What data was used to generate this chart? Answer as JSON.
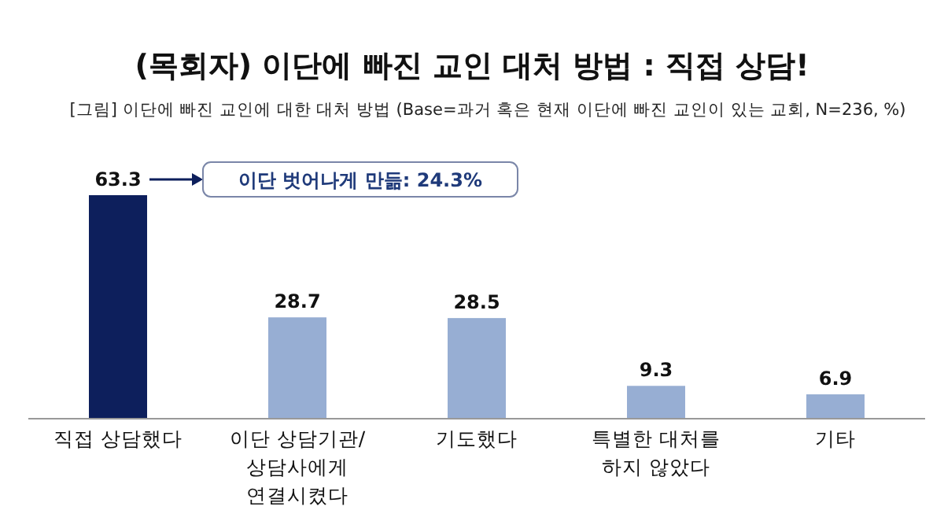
{
  "chart_data": {
    "type": "bar",
    "title": "(목회자) 이단에 빠진 교인 대처 방법 : 직접 상담!",
    "subtitle": "[그림] 이단에 빠진 교인에 대한 대처 방법 (Base=과거 혹은 현재 이단에 빠진 교인이 있는 교회, N=236, %)",
    "categories": [
      "직접 상담했다",
      "이단 상담기관/\n상담사에게\n연결시켰다",
      "기도했다",
      "특별한 대처를\n하지 않았다",
      "기타"
    ],
    "values": [
      63.3,
      28.7,
      28.5,
      9.3,
      6.9
    ],
    "colors": [
      "#0d1f5c",
      "#97aed3",
      "#97aed3",
      "#97aed3",
      "#97aed3"
    ],
    "data_labels": true,
    "annotations": [
      "이단 벗어나게 만듦: 24.3%"
    ]
  }
}
